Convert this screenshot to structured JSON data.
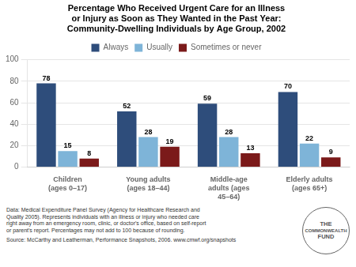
{
  "chart_data": {
    "type": "bar",
    "title": "Percentage Who Received Urgent Care for an Illness\nor Injury as Soon as They Wanted in the Past Year:\nCommunity-Dwelling Individuals by Age Group, 2002",
    "categories": [
      "Children\n(ages 0–17)",
      "Young adults\n(ages 18–44)",
      "Middle-age\nadults (ages\n45–64)",
      "Elderly adults\n(ages 65+)"
    ],
    "series": [
      {
        "name": "Always",
        "color": "#2E4D7B",
        "values": [
          78,
          52,
          59,
          70
        ]
      },
      {
        "name": "Usually",
        "color": "#7EB4D8",
        "values": [
          15,
          28,
          28,
          22
        ]
      },
      {
        "name": "Sometimes or never",
        "color": "#7B1A1A",
        "values": [
          8,
          19,
          13,
          9
        ]
      }
    ],
    "ylim": [
      0,
      100
    ],
    "yticks": [
      0,
      20,
      40,
      60,
      80,
      100
    ],
    "grid": true,
    "legend": "top",
    "data_labels": true,
    "annotations": [
      "Data: Medical Expenditure Panel Survey (Agency for Healthcare Research and\nQuality 2005). Represents individuals with an illness or injury who needed care\nright away from an emergency room, clinic, or doctor's office, based on self-report\nor parent's report. Percentages may not add to 100 because of rounding.",
      "Source: McCarthy and Leatherman, Performance Snapshots, 2006. www.cmwf.org/snapshots",
      "THE",
      "COMMONWEALTH",
      "FUND"
    ]
  }
}
